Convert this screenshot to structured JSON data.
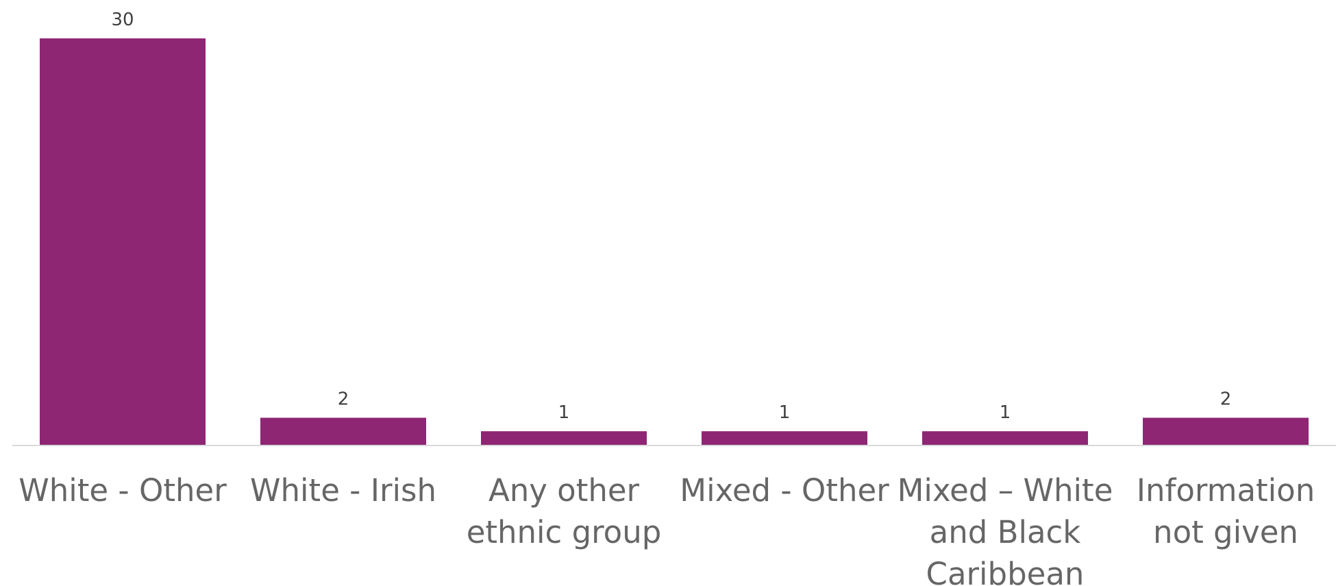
{
  "chart_data": {
    "type": "bar",
    "categories": [
      "White - Other",
      "White - Irish",
      "Any other\nethnic group",
      "Mixed - Other",
      "Mixed – White\nand Black\nCaribbean",
      "Information\nnot given"
    ],
    "values": [
      30,
      2,
      1,
      1,
      1,
      2
    ],
    "data_labels": [
      "30",
      "2",
      "1",
      "1",
      "1",
      "2"
    ],
    "title": "",
    "xlabel": "",
    "ylabel": "",
    "ylim": [
      0,
      30
    ],
    "grid": false,
    "legend": "none",
    "bar_color": "#8e2674",
    "axis_color": "#d9d9d9",
    "text_color": "#666666"
  }
}
